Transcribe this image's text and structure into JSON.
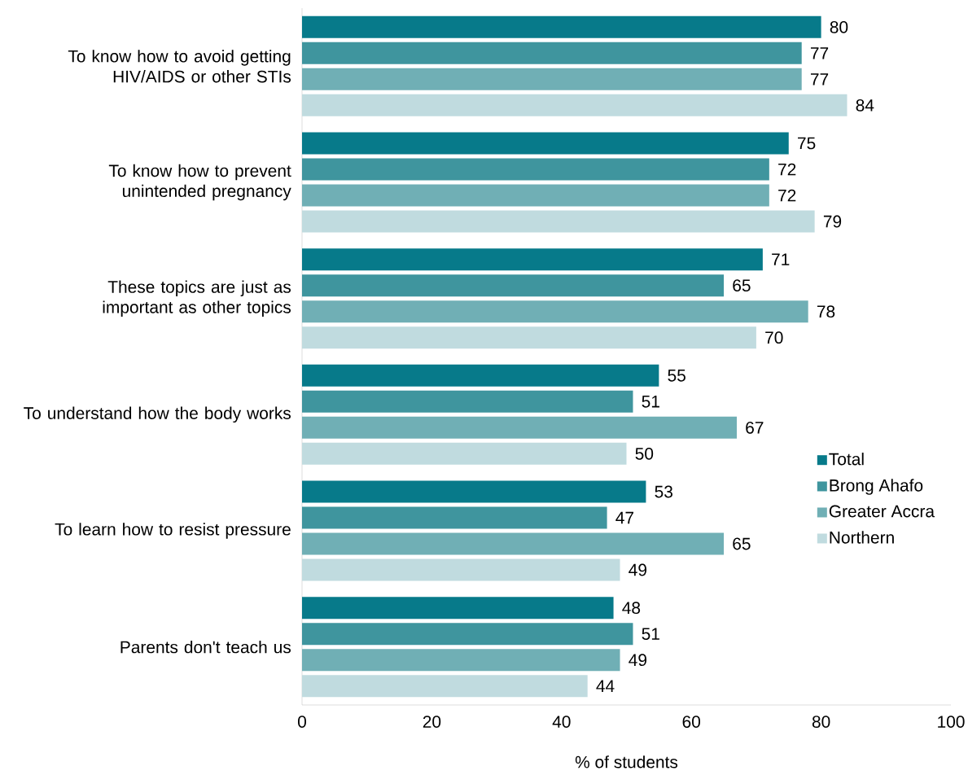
{
  "chart_data": {
    "type": "bar",
    "orientation": "horizontal",
    "xlabel": "% of students",
    "categories": [
      "To know how to avoid getting HIV/AIDS or other STIs",
      "To know how to prevent unintended pregnancy",
      "These topics are just as important as other topics",
      "To understand how the body works",
      "To learn how to resist pressure",
      "Parents don't teach us"
    ],
    "series": [
      {
        "name": "Total",
        "color": "#077a8a",
        "values": [
          80,
          75,
          71,
          55,
          53,
          48
        ]
      },
      {
        "name": "Brong Ahafo",
        "color": "#3f959e",
        "values": [
          77,
          72,
          65,
          51,
          47,
          51
        ]
      },
      {
        "name": "Greater Accra",
        "color": "#70afb5",
        "values": [
          77,
          72,
          78,
          67,
          65,
          49
        ]
      },
      {
        "name": "Northern",
        "color": "#c0dbdf",
        "values": [
          84,
          79,
          70,
          50,
          49,
          44
        ]
      }
    ],
    "xlim": [
      0,
      100
    ],
    "xticks": [
      0,
      20,
      40,
      60,
      80,
      100
    ],
    "data_labels": true,
    "legend": "center right",
    "grid": false
  }
}
